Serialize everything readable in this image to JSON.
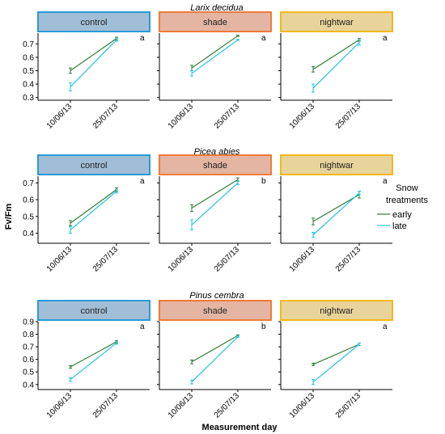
{
  "chart_data": {
    "type": "line",
    "xlabel": "Measurement day",
    "ylabel": "Fv/Fm",
    "x": [
      "10/06/13",
      "25/07/13"
    ],
    "legend": {
      "title_lines": [
        "Snow",
        "treatments"
      ],
      "placement": "right",
      "entries": [
        {
          "name": "early",
          "color": "#2e7d32"
        },
        {
          "name": "late",
          "color": "#22c3e6"
        }
      ]
    },
    "treatments": [
      {
        "name": "control",
        "fill": "#a2bed6",
        "border": "#2a9ad6"
      },
      {
        "name": "shade",
        "fill": "#e4b5a2",
        "border": "#ef7a3a"
      },
      {
        "name": "nightwar",
        "fill": "#e8d39a",
        "border": "#f2b81c"
      }
    ],
    "species": [
      {
        "name": "Larix decidua",
        "ylim": [
          0.28,
          0.78
        ],
        "yticks": [
          "0.3",
          "0.4",
          "0.5",
          "0.6",
          "0.7"
        ],
        "panels": [
          {
            "treatment": "control",
            "letter": "a",
            "series": [
              {
                "name": "early",
                "values": [
                  0.5,
                  0.74
                ],
                "err": [
                  0.02,
                  0.01
                ]
              },
              {
                "name": "late",
                "values": [
                  0.38,
                  0.73
                ],
                "err": [
                  0.03,
                  0.01
                ]
              }
            ]
          },
          {
            "treatment": "shade",
            "letter": "a",
            "series": [
              {
                "name": "early",
                "values": [
                  0.52,
                  0.76
                ],
                "err": [
                  0.02,
                  0.005
                ]
              },
              {
                "name": "late",
                "values": [
                  0.48,
                  0.73
                ],
                "err": [
                  0.02,
                  0.005
                ]
              }
            ]
          },
          {
            "treatment": "nightwar",
            "letter": "a",
            "series": [
              {
                "name": "early",
                "values": [
                  0.51,
                  0.73
                ],
                "err": [
                  0.02,
                  0.01
                ]
              },
              {
                "name": "late",
                "values": [
                  0.37,
                  0.71
                ],
                "err": [
                  0.03,
                  0.02
                ]
              }
            ]
          }
        ]
      },
      {
        "name": "Picea abies",
        "ylim": [
          0.34,
          0.74
        ],
        "yticks": [
          "0.4",
          "0.5",
          "0.6",
          "0.7"
        ],
        "panels": [
          {
            "treatment": "control",
            "letter": "a",
            "series": [
              {
                "name": "early",
                "values": [
                  0.46,
                  0.66
                ],
                "err": [
                  0.015,
                  0.01
                ]
              },
              {
                "name": "late",
                "values": [
                  0.42,
                  0.65
                ],
                "err": [
                  0.02,
                  0.01
                ]
              }
            ]
          },
          {
            "treatment": "shade",
            "letter": "b",
            "series": [
              {
                "name": "early",
                "values": [
                  0.55,
                  0.72
                ],
                "err": [
                  0.02,
                  0.01
                ]
              },
              {
                "name": "late",
                "values": [
                  0.45,
                  0.7
                ],
                "err": [
                  0.03,
                  0.01
                ]
              }
            ]
          },
          {
            "treatment": "nightwar",
            "letter": "a",
            "series": [
              {
                "name": "early",
                "values": [
                  0.47,
                  0.63
                ],
                "err": [
                  0.02,
                  0.02
                ]
              },
              {
                "name": "late",
                "values": [
                  0.39,
                  0.64
                ],
                "err": [
                  0.015,
                  0.01
                ]
              }
            ]
          }
        ]
      },
      {
        "name": "Pinus cembra",
        "ylim": [
          0.36,
          0.9
        ],
        "yticks": [
          "0.4",
          "0.5",
          "0.6",
          "0.7",
          "0.8",
          "0.9"
        ],
        "panels": [
          {
            "treatment": "control",
            "letter": "a",
            "series": [
              {
                "name": "early",
                "values": [
                  0.54,
                  0.74
                ],
                "err": [
                  0.01,
                  0.01
                ]
              },
              {
                "name": "late",
                "values": [
                  0.44,
                  0.73
                ],
                "err": [
                  0.015,
                  0.01
                ]
              }
            ]
          },
          {
            "treatment": "shade",
            "letter": "b",
            "series": [
              {
                "name": "early",
                "values": [
                  0.58,
                  0.79
                ],
                "err": [
                  0.015,
                  0.005
                ]
              },
              {
                "name": "late",
                "values": [
                  0.42,
                  0.78
                ],
                "err": [
                  0.015,
                  0.005
                ]
              }
            ]
          },
          {
            "treatment": "nightwar",
            "letter": "a",
            "series": [
              {
                "name": "early",
                "values": [
                  0.56,
                  0.72
                ],
                "err": [
                  0.01,
                  0.01
                ]
              },
              {
                "name": "late",
                "values": [
                  0.42,
                  0.72
                ],
                "err": [
                  0.02,
                  0.01
                ]
              }
            ]
          }
        ]
      }
    ]
  }
}
